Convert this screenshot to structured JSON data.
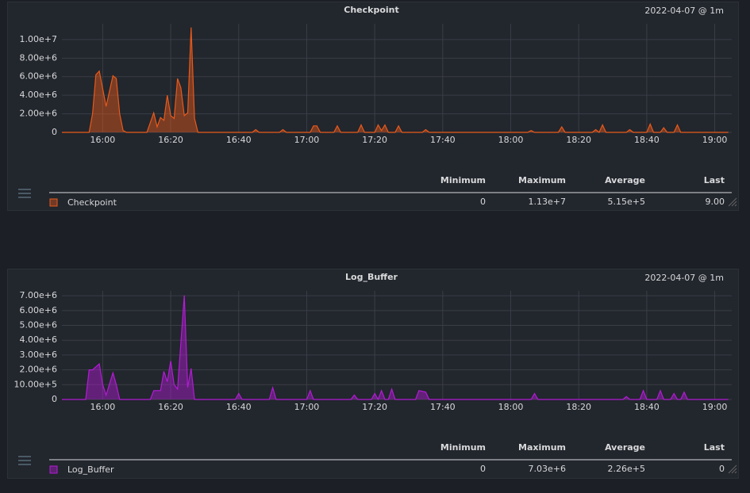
{
  "chart_data": [
    {
      "type": "area",
      "title": "Checkpoint",
      "subtitle": "2022-04-07 @ 1m",
      "x": [
        "15:48",
        "15:56",
        "15:57",
        "15:58",
        "15:59",
        "16:01",
        "16:03",
        "16:04",
        "16:05",
        "16:06",
        "16:07",
        "16:13",
        "16:15",
        "16:16",
        "16:17",
        "16:18",
        "16:19",
        "16:20",
        "16:21",
        "16:22",
        "16:23",
        "16:24",
        "16:25",
        "16:26",
        "16:27",
        "16:28",
        "16:44",
        "16:45",
        "16:46",
        "16:52",
        "16:53",
        "16:54",
        "17:01",
        "17:02",
        "17:03",
        "17:04",
        "17:08",
        "17:09",
        "17:10",
        "17:15",
        "17:16",
        "17:17",
        "17:20",
        "17:21",
        "17:22",
        "17:23",
        "17:24",
        "17:26",
        "17:27",
        "17:28",
        "17:34",
        "17:35",
        "17:36",
        "18:05",
        "18:06",
        "18:07",
        "18:14",
        "18:15",
        "18:16",
        "18:24",
        "18:25",
        "18:26",
        "18:27",
        "18:28",
        "18:34",
        "18:35",
        "18:36",
        "18:40",
        "18:41",
        "18:42",
        "18:44",
        "18:45",
        "18:46",
        "18:48",
        "18:49",
        "18:50",
        "19:04"
      ],
      "series": [
        {
          "name": "Checkpoint",
          "color": "#e8591a",
          "values": [
            0,
            0,
            2000000,
            6200000,
            6600000,
            2800000,
            6100000,
            5800000,
            2000000,
            200000,
            0,
            0,
            2100000,
            600000,
            1600000,
            1300000,
            4000000,
            1800000,
            1500000,
            5800000,
            4800000,
            1800000,
            2100000,
            11300000,
            1500000,
            0,
            0,
            300000,
            0,
            0,
            300000,
            0,
            0,
            700000,
            700000,
            0,
            0,
            700000,
            0,
            0,
            800000,
            0,
            0,
            800000,
            200000,
            800000,
            0,
            0,
            700000,
            0,
            0,
            300000,
            0,
            0,
            200000,
            0,
            0,
            600000,
            0,
            0,
            300000,
            0,
            800000,
            0,
            0,
            300000,
            0,
            0,
            900000,
            0,
            0,
            500000,
            0,
            0,
            800000,
            0,
            0
          ]
        }
      ],
      "xlim": [
        "15:48",
        "19:05"
      ],
      "xticks": [
        "16:00",
        "16:20",
        "16:40",
        "17:00",
        "17:20",
        "17:40",
        "18:00",
        "18:20",
        "18:40",
        "19:00"
      ],
      "ylim": [
        0,
        11700000
      ],
      "yticks": [
        0,
        {
          "value": 2000000,
          "label": "2.00e+6"
        },
        {
          "value": 4000000,
          "label": "4.00e+6"
        },
        {
          "value": 6000000,
          "label": "6.00e+6"
        },
        {
          "value": 8000000,
          "label": "8.00e+6"
        },
        {
          "value": 10000000,
          "label": "1.00e+7"
        }
      ],
      "grid": true,
      "stats": {
        "headers": [
          "Minimum",
          "Maximum",
          "Average",
          "Last"
        ],
        "values": [
          "0",
          "1.13e+7",
          "5.15e+5",
          "9.00"
        ]
      }
    },
    {
      "type": "area",
      "title": "Log_Buffer",
      "subtitle": "2022-04-07 @ 1m",
      "x": [
        "15:48",
        "15:55",
        "15:56",
        "15:57",
        "15:59",
        "16:00",
        "16:01",
        "16:03",
        "16:04",
        "16:05",
        "16:14",
        "16:15",
        "16:17",
        "16:18",
        "16:19",
        "16:20",
        "16:21",
        "16:22",
        "16:24",
        "16:25",
        "16:26",
        "16:27",
        "16:39",
        "16:40",
        "16:41",
        "16:49",
        "16:50",
        "16:51",
        "17:00",
        "17:01",
        "17:02",
        "17:13",
        "17:14",
        "17:15",
        "17:19",
        "17:20",
        "17:21",
        "17:22",
        "17:23",
        "17:24",
        "17:25",
        "17:26",
        "17:32",
        "17:33",
        "17:35",
        "17:36",
        "18:06",
        "18:07",
        "18:08",
        "18:33",
        "18:34",
        "18:35",
        "18:38",
        "18:39",
        "18:40",
        "18:43",
        "18:44",
        "18:45",
        "18:47",
        "18:48",
        "18:49",
        "18:50",
        "18:51",
        "18:52",
        "19:04"
      ],
      "series": [
        {
          "name": "Log_Buffer",
          "color": "#b31bd6",
          "values": [
            0,
            0,
            2000000,
            2000000,
            2400000,
            1000000,
            300000,
            1800000,
            1000000,
            0,
            0,
            600000,
            600000,
            1900000,
            1200000,
            2600000,
            1000000,
            700000,
            7030000,
            800000,
            2100000,
            0,
            0,
            400000,
            0,
            0,
            800000,
            0,
            0,
            600000,
            0,
            0,
            300000,
            0,
            0,
            400000,
            0,
            600000,
            0,
            0,
            700000,
            0,
            0,
            600000,
            500000,
            0,
            0,
            400000,
            0,
            0,
            200000,
            0,
            0,
            600000,
            0,
            0,
            600000,
            0,
            0,
            400000,
            0,
            0,
            500000,
            0,
            0
          ]
        }
      ],
      "xlim": [
        "15:48",
        "19:05"
      ],
      "xticks": [
        "16:00",
        "16:20",
        "16:40",
        "17:00",
        "17:20",
        "17:40",
        "18:00",
        "18:20",
        "18:40",
        "19:00"
      ],
      "ylim": [
        0,
        7330000
      ],
      "yticks": [
        0,
        {
          "value": 1000000,
          "label": "10.00e+5"
        },
        {
          "value": 2000000,
          "label": "2.00e+6"
        },
        {
          "value": 3000000,
          "label": "3.00e+6"
        },
        {
          "value": 4000000,
          "label": "4.00e+6"
        },
        {
          "value": 5000000,
          "label": "5.00e+6"
        },
        {
          "value": 6000000,
          "label": "6.00e+6"
        },
        {
          "value": 7000000,
          "label": "7.00e+6"
        }
      ],
      "grid": true,
      "stats": {
        "headers": [
          "Minimum",
          "Maximum",
          "Average",
          "Last"
        ],
        "values": [
          "0",
          "7.03e+6",
          "2.26e+5",
          "0"
        ]
      }
    }
  ]
}
